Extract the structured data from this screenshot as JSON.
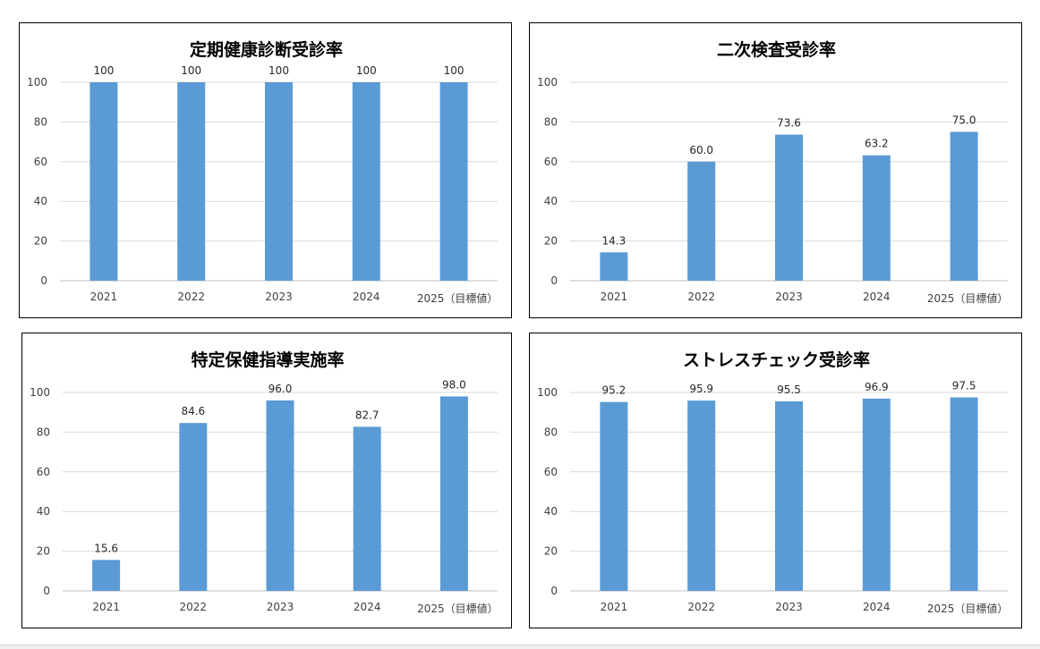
{
  "colors": {
    "bar": "#5b9bd5",
    "grid": "#d9d9d9",
    "border": "#000000"
  },
  "chart_data": [
    {
      "type": "bar",
      "title": "定期健康診断受診率",
      "categories": [
        "2021",
        "2022",
        "2023",
        "2024",
        "2025（目標値）"
      ],
      "values": [
        100,
        100,
        100,
        100,
        100
      ],
      "value_labels": [
        "100",
        "100",
        "100",
        "100",
        "100"
      ],
      "ylim": [
        0,
        100
      ],
      "yticks": [
        "0",
        "20",
        "40",
        "60",
        "80",
        "100"
      ],
      "grid": true,
      "xlabel": "",
      "ylabel": ""
    },
    {
      "type": "bar",
      "title": "二次検査受診率",
      "categories": [
        "2021",
        "2022",
        "2023",
        "2024",
        "2025（目標値）"
      ],
      "values": [
        14.3,
        60.0,
        73.6,
        63.2,
        75.0
      ],
      "value_labels": [
        "14.3",
        "60.0",
        "73.6",
        "63.2",
        "75.0"
      ],
      "ylim": [
        0,
        100
      ],
      "yticks": [
        "0",
        "20",
        "40",
        "60",
        "80",
        "100"
      ],
      "grid": true,
      "xlabel": "",
      "ylabel": ""
    },
    {
      "type": "bar",
      "title": "特定保健指導実施率",
      "categories": [
        "2021",
        "2022",
        "2023",
        "2024",
        "2025（目標値）"
      ],
      "values": [
        15.6,
        84.6,
        96.0,
        82.7,
        98.0
      ],
      "value_labels": [
        "15.6",
        "84.6",
        "96.0",
        "82.7",
        "98.0"
      ],
      "ylim": [
        0,
        100
      ],
      "yticks": [
        "0",
        "20",
        "40",
        "60",
        "80",
        "100"
      ],
      "grid": true,
      "xlabel": "",
      "ylabel": ""
    },
    {
      "type": "bar",
      "title": "ストレスチェック受診率",
      "categories": [
        "2021",
        "2022",
        "2023",
        "2024",
        "2025（目標値）"
      ],
      "values": [
        95.2,
        95.9,
        95.5,
        96.9,
        97.5
      ],
      "value_labels": [
        "95.2",
        "95.9",
        "95.5",
        "96.9",
        "97.5"
      ],
      "ylim": [
        0,
        100
      ],
      "yticks": [
        "0",
        "20",
        "40",
        "60",
        "80",
        "100"
      ],
      "grid": true,
      "xlabel": "",
      "ylabel": ""
    }
  ]
}
